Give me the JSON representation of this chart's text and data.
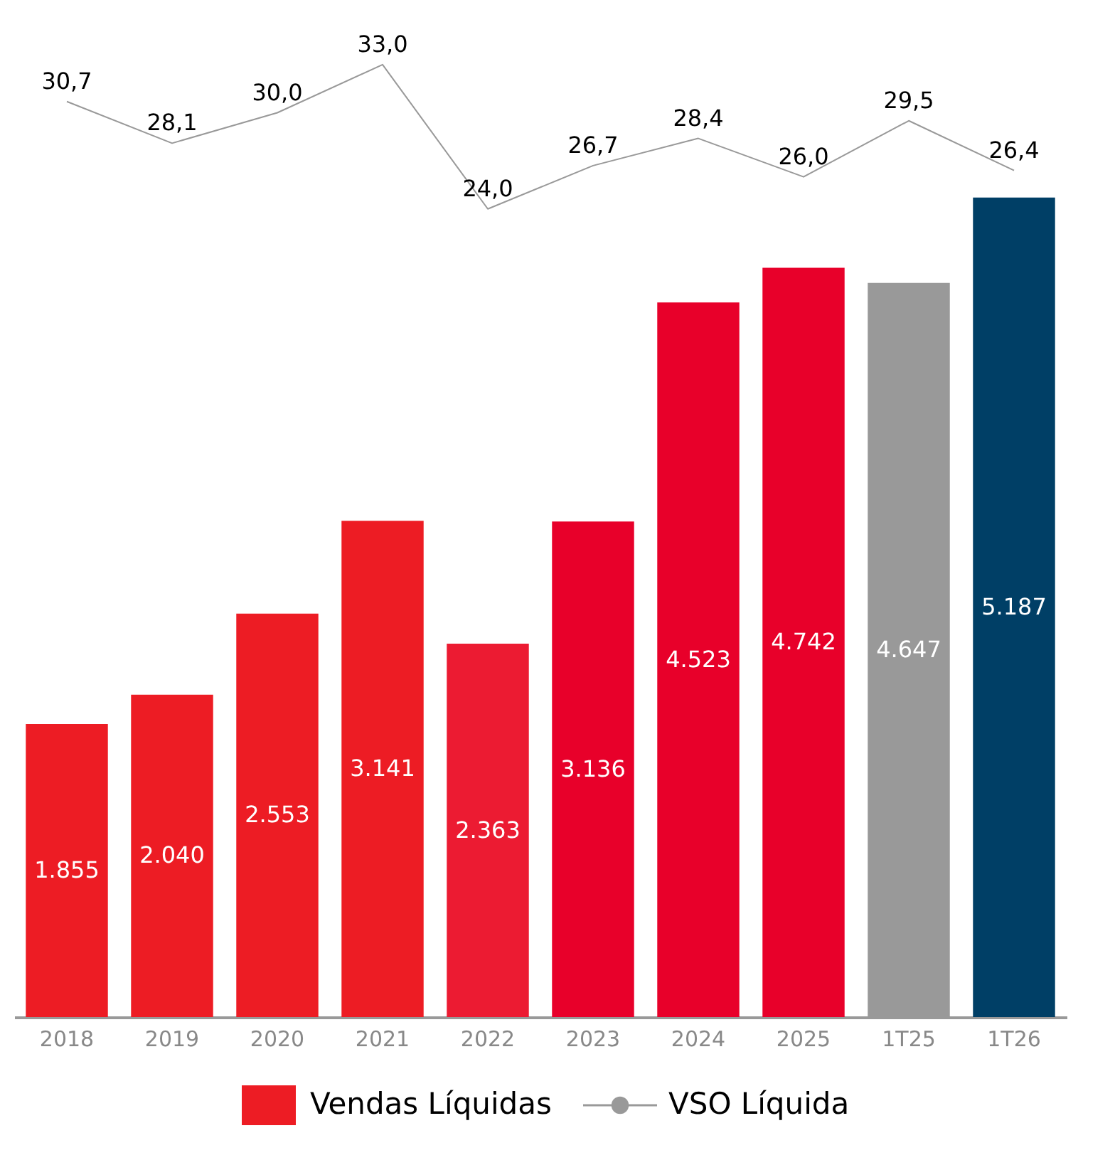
{
  "chart_data": {
    "type": "bar",
    "categories": [
      "2018",
      "2019",
      "2020",
      "2021",
      "2022",
      "2023",
      "2024",
      "2025",
      "1T25",
      "1T26"
    ],
    "legend": "bottom",
    "series": [
      {
        "name": "Vendas Líquidas",
        "color": "#ed1c24",
        "colors": [
          "#ed1c24",
          "#ed1c24",
          "#ed1c24",
          "#ed1c24",
          "#ec1b32",
          "#e8002a",
          "#e8002a",
          "#e8002a",
          "#999999",
          "#003f66"
        ],
        "values": [
          1855,
          2040,
          2553,
          3141,
          2363,
          3136,
          4523,
          4742,
          4647,
          5187
        ],
        "value_labels": [
          "1.855",
          "2.040",
          "2.553",
          "3.141",
          "2.363",
          "3.136",
          "4.523",
          "4.742",
          "4.647",
          "5.187"
        ]
      },
      {
        "name": "VSO Líquida",
        "type": "line",
        "axis": "y2",
        "color": "#999999",
        "values": [
          30.7,
          28.1,
          30.0,
          33.0,
          24.0,
          26.7,
          28.4,
          26.0,
          29.5,
          26.4
        ],
        "value_labels": [
          "30,7",
          "28,1",
          "30,0",
          "33,0",
          "24,0",
          "26,7",
          "28,4",
          "26,0",
          "29,5",
          "26,4"
        ]
      }
    ]
  }
}
